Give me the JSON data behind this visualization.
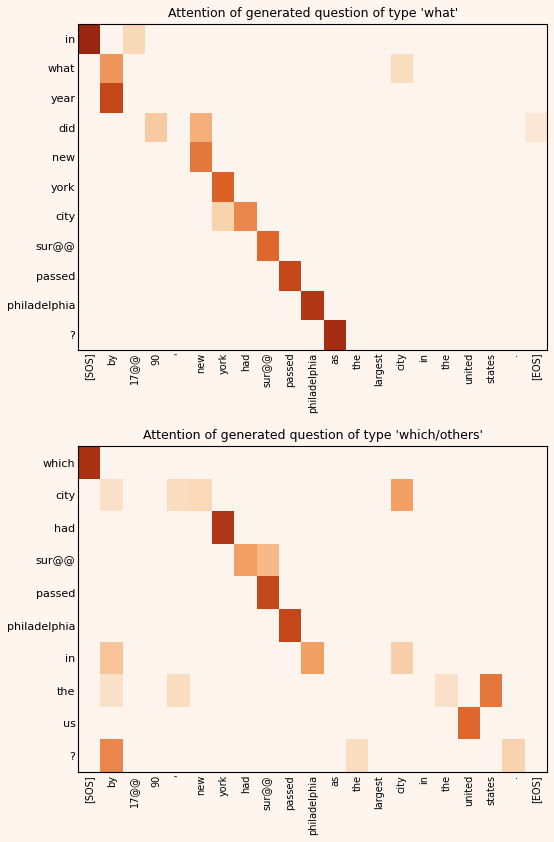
{
  "title1": "Attention of generated question of type 'what'",
  "title2": "Attention of generated question of type 'which/others'",
  "x_labels": [
    "[SOS]",
    "by",
    "17@@",
    "90",
    "'",
    "new",
    "york",
    "had",
    "sur@@",
    "passed",
    "philadelphia",
    "as",
    "the",
    "largest",
    "city",
    "in",
    "the",
    "united",
    "states",
    ".",
    "[EOS]"
  ],
  "y_labels1": [
    "in",
    "what",
    "year",
    "did",
    "new",
    "york",
    "city",
    "sur@@",
    "passed",
    "philadelphia",
    "?"
  ],
  "y_labels2": [
    "which",
    "city",
    "had",
    "sur@@",
    "passed",
    "philadelphia",
    "in",
    "the",
    "us",
    "?"
  ],
  "attn1": [
    [
      0.95,
      0.0,
      0.25,
      0.0,
      0.0,
      0.0,
      0.0,
      0.0,
      0.0,
      0.0,
      0.0,
      0.0,
      0.0,
      0.0,
      0.0,
      0.0,
      0.0,
      0.0,
      0.0,
      0.0,
      0.0
    ],
    [
      0.0,
      0.55,
      0.0,
      0.0,
      0.0,
      0.0,
      0.0,
      0.0,
      0.0,
      0.0,
      0.0,
      0.0,
      0.0,
      0.0,
      0.22,
      0.0,
      0.0,
      0.0,
      0.0,
      0.0,
      0.0
    ],
    [
      0.0,
      0.82,
      0.0,
      0.0,
      0.0,
      0.0,
      0.0,
      0.0,
      0.0,
      0.0,
      0.0,
      0.0,
      0.0,
      0.0,
      0.0,
      0.0,
      0.0,
      0.0,
      0.0,
      0.0,
      0.0
    ],
    [
      0.0,
      0.0,
      0.0,
      0.32,
      0.0,
      0.45,
      0.0,
      0.0,
      0.0,
      0.0,
      0.0,
      0.0,
      0.0,
      0.0,
      0.0,
      0.0,
      0.0,
      0.0,
      0.0,
      0.0,
      0.12
    ],
    [
      0.0,
      0.0,
      0.0,
      0.0,
      0.0,
      0.65,
      0.0,
      0.0,
      0.0,
      0.0,
      0.0,
      0.0,
      0.0,
      0.0,
      0.0,
      0.0,
      0.0,
      0.0,
      0.0,
      0.0,
      0.0
    ],
    [
      0.0,
      0.0,
      0.0,
      0.0,
      0.0,
      0.0,
      0.72,
      0.0,
      0.0,
      0.0,
      0.0,
      0.0,
      0.0,
      0.0,
      0.0,
      0.0,
      0.0,
      0.0,
      0.0,
      0.0,
      0.0
    ],
    [
      0.0,
      0.0,
      0.0,
      0.0,
      0.0,
      0.0,
      0.28,
      0.6,
      0.0,
      0.0,
      0.0,
      0.0,
      0.0,
      0.0,
      0.0,
      0.0,
      0.0,
      0.0,
      0.0,
      0.0,
      0.0
    ],
    [
      0.0,
      0.0,
      0.0,
      0.0,
      0.0,
      0.0,
      0.0,
      0.0,
      0.7,
      0.0,
      0.0,
      0.0,
      0.0,
      0.0,
      0.0,
      0.0,
      0.0,
      0.0,
      0.0,
      0.0,
      0.0
    ],
    [
      0.0,
      0.0,
      0.0,
      0.0,
      0.0,
      0.0,
      0.0,
      0.0,
      0.0,
      0.82,
      0.0,
      0.0,
      0.0,
      0.0,
      0.0,
      0.0,
      0.0,
      0.0,
      0.0,
      0.0,
      0.0
    ],
    [
      0.0,
      0.0,
      0.0,
      0.0,
      0.0,
      0.0,
      0.0,
      0.0,
      0.0,
      0.0,
      0.88,
      0.0,
      0.0,
      0.0,
      0.0,
      0.0,
      0.0,
      0.0,
      0.0,
      0.0,
      0.0
    ],
    [
      0.0,
      0.0,
      0.0,
      0.0,
      0.0,
      0.0,
      0.0,
      0.0,
      0.0,
      0.0,
      0.0,
      0.92,
      0.0,
      0.0,
      0.0,
      0.0,
      0.0,
      0.0,
      0.0,
      0.0,
      0.0
    ]
  ],
  "attn2": [
    [
      0.9,
      0.0,
      0.0,
      0.0,
      0.0,
      0.0,
      0.0,
      0.0,
      0.0,
      0.0,
      0.0,
      0.0,
      0.0,
      0.0,
      0.0,
      0.0,
      0.0,
      0.0,
      0.0,
      0.0,
      0.0
    ],
    [
      0.0,
      0.18,
      0.0,
      0.0,
      0.22,
      0.25,
      0.0,
      0.0,
      0.0,
      0.0,
      0.0,
      0.0,
      0.0,
      0.0,
      0.52,
      0.0,
      0.0,
      0.0,
      0.0,
      0.0,
      0.0
    ],
    [
      0.0,
      0.0,
      0.0,
      0.0,
      0.0,
      0.0,
      0.88,
      0.0,
      0.0,
      0.0,
      0.0,
      0.0,
      0.0,
      0.0,
      0.0,
      0.0,
      0.0,
      0.0,
      0.0,
      0.0,
      0.0
    ],
    [
      0.0,
      0.0,
      0.0,
      0.0,
      0.0,
      0.0,
      0.0,
      0.52,
      0.4,
      0.0,
      0.0,
      0.0,
      0.0,
      0.0,
      0.0,
      0.0,
      0.0,
      0.0,
      0.0,
      0.0,
      0.0
    ],
    [
      0.0,
      0.0,
      0.0,
      0.0,
      0.0,
      0.0,
      0.0,
      0.0,
      0.82,
      0.0,
      0.0,
      0.0,
      0.0,
      0.0,
      0.0,
      0.0,
      0.0,
      0.0,
      0.0,
      0.0,
      0.0
    ],
    [
      0.0,
      0.0,
      0.0,
      0.0,
      0.0,
      0.0,
      0.0,
      0.0,
      0.0,
      0.82,
      0.0,
      0.0,
      0.0,
      0.0,
      0.0,
      0.0,
      0.0,
      0.0,
      0.0,
      0.0,
      0.0
    ],
    [
      0.0,
      0.35,
      0.0,
      0.0,
      0.0,
      0.0,
      0.0,
      0.0,
      0.0,
      0.0,
      0.52,
      0.0,
      0.0,
      0.0,
      0.3,
      0.0,
      0.0,
      0.0,
      0.0,
      0.0,
      0.0
    ],
    [
      0.0,
      0.18,
      0.0,
      0.0,
      0.22,
      0.0,
      0.0,
      0.0,
      0.0,
      0.0,
      0.0,
      0.0,
      0.0,
      0.0,
      0.0,
      0.0,
      0.18,
      0.0,
      0.65,
      0.0,
      0.0
    ],
    [
      0.0,
      0.0,
      0.0,
      0.0,
      0.0,
      0.0,
      0.0,
      0.0,
      0.0,
      0.0,
      0.0,
      0.0,
      0.0,
      0.0,
      0.0,
      0.0,
      0.0,
      0.7,
      0.0,
      0.0,
      0.0
    ],
    [
      0.0,
      0.6,
      0.0,
      0.0,
      0.0,
      0.0,
      0.0,
      0.0,
      0.0,
      0.0,
      0.0,
      0.0,
      0.22,
      0.0,
      0.0,
      0.0,
      0.0,
      0.0,
      0.0,
      0.28,
      0.0
    ]
  ],
  "bg_color": "#fdf5ee",
  "vmin": 0.0,
  "vmax": 1.0
}
